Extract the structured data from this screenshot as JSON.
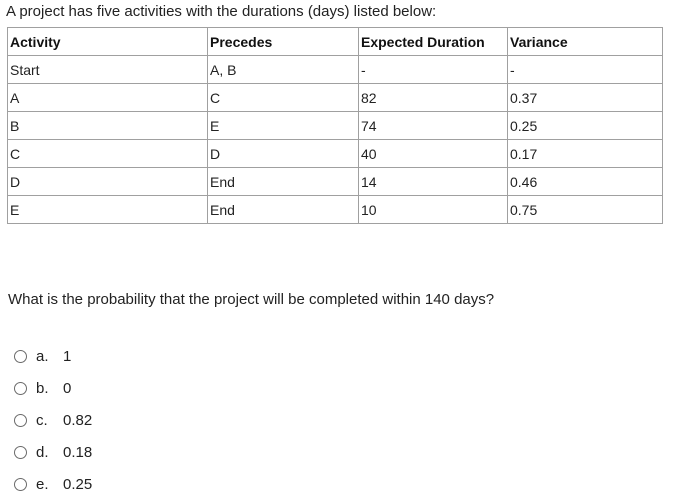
{
  "intro": "A project has five activities with the durations (days) listed below:",
  "table": {
    "headers": [
      "Activity",
      "Precedes",
      "Expected Duration",
      "Variance"
    ],
    "rows": [
      [
        "Start",
        "A, B",
        "-",
        "-"
      ],
      [
        "A",
        "C",
        "82",
        "0.37"
      ],
      [
        "B",
        "E",
        "74",
        "0.25"
      ],
      [
        "C",
        "D",
        "40",
        "0.17"
      ],
      [
        "D",
        "End",
        "14",
        "0.46"
      ],
      [
        "E",
        "End",
        "10",
        "0.75"
      ]
    ]
  },
  "question": "What is the probability that the project will be completed within 140 days?",
  "options": [
    {
      "letter": "a.",
      "value": "1"
    },
    {
      "letter": "b.",
      "value": "0"
    },
    {
      "letter": "c.",
      "value": "0.82"
    },
    {
      "letter": "d.",
      "value": "0.18"
    },
    {
      "letter": "e.",
      "value": "0.25"
    }
  ]
}
